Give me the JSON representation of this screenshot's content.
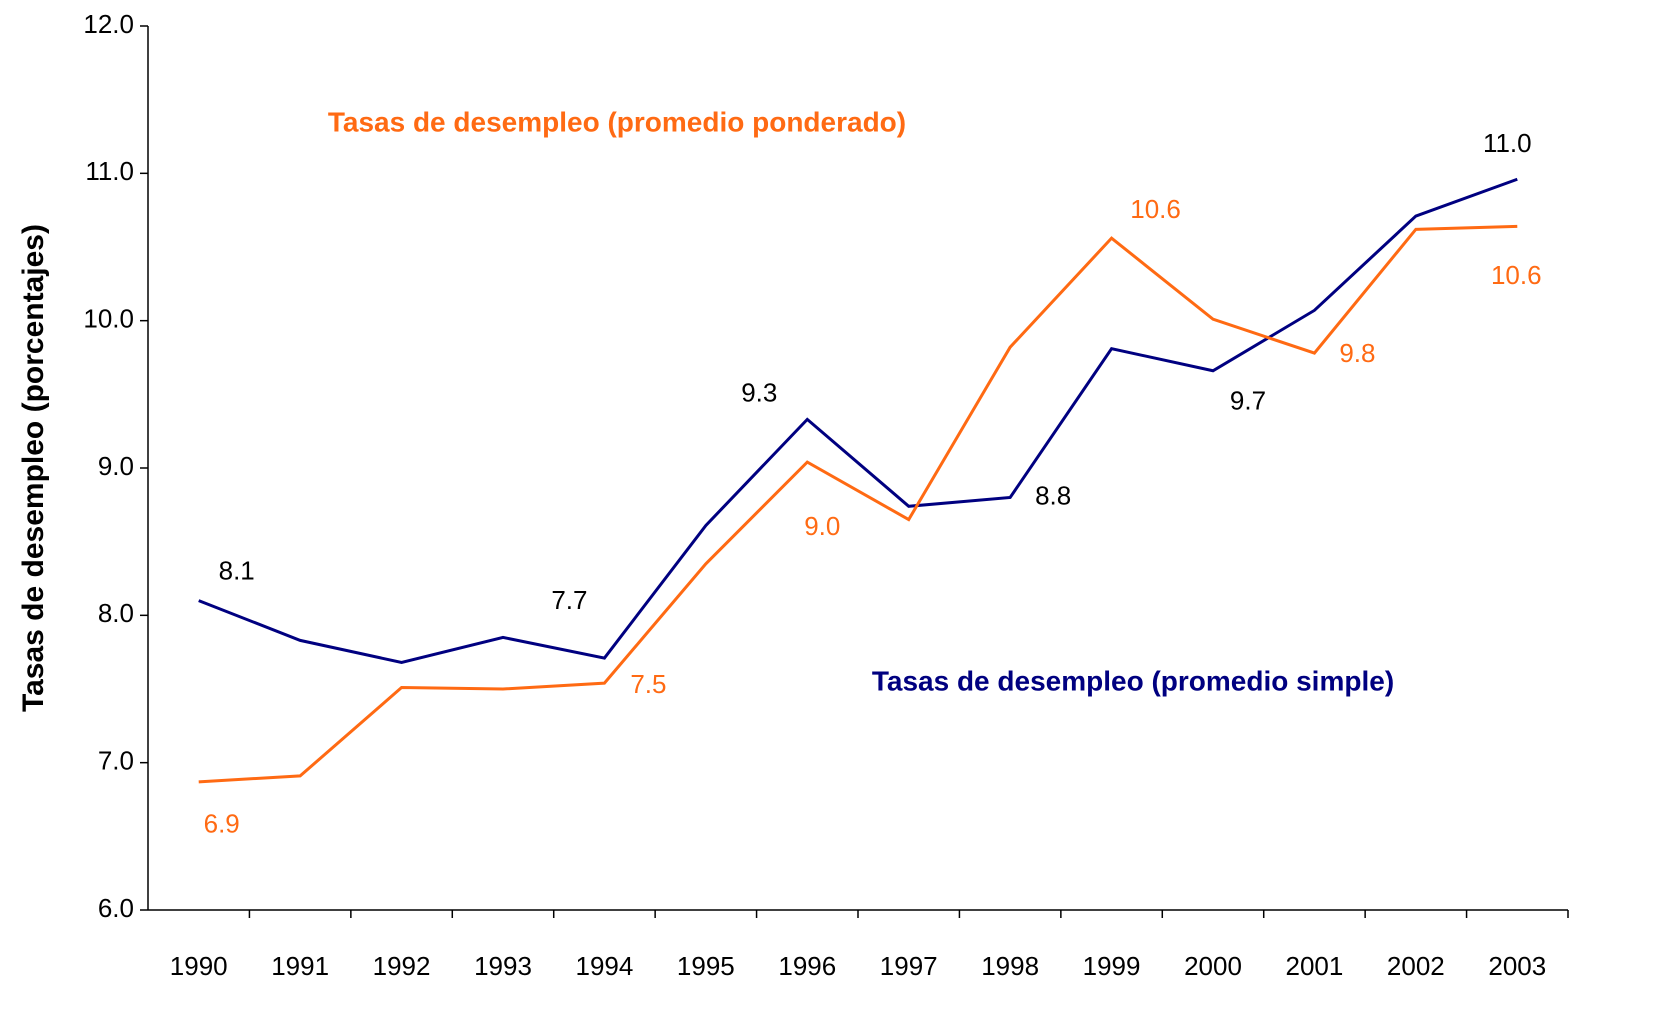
{
  "chart_data": {
    "type": "line",
    "y_label": "Tasas de desempleo (porcentajes)",
    "categories": [
      "1990",
      "1991",
      "1992",
      "1993",
      "1994",
      "1995",
      "1996",
      "1997",
      "1998",
      "1999",
      "2000",
      "2001",
      "2002",
      "2003"
    ],
    "series": [
      {
        "name": "Tasas de desempleo (promedio simple)",
        "color": "#000080",
        "values": [
          8.1,
          7.83,
          7.68,
          7.85,
          7.71,
          8.61,
          9.33,
          8.74,
          8.8,
          9.81,
          9.66,
          10.07,
          10.71,
          10.96
        ],
        "value_labels": [
          "8.1",
          null,
          null,
          null,
          "7.7",
          null,
          "9.3",
          null,
          "8.8",
          null,
          "9.7",
          null,
          null,
          "11.0"
        ]
      },
      {
        "name": "Tasas de desempleo (promedio ponderado)",
        "color": "#ff6a13",
        "values": [
          6.87,
          6.91,
          7.51,
          7.5,
          7.54,
          8.35,
          9.04,
          8.65,
          9.82,
          10.56,
          10.01,
          9.78,
          10.62,
          10.64
        ],
        "value_labels": [
          "6.9",
          null,
          null,
          null,
          "7.5",
          null,
          "9.0",
          null,
          null,
          "10.6",
          null,
          "9.8",
          null,
          "10.6"
        ]
      }
    ],
    "ylim": [
      6,
      12
    ],
    "yticks": [
      {
        "value": 6,
        "label": "6.0"
      },
      {
        "value": 7,
        "label": "7.0"
      },
      {
        "value": 8,
        "label": "8.0"
      },
      {
        "value": 9,
        "label": "9.0"
      },
      {
        "value": 10,
        "label": "10.0"
      },
      {
        "value": 11,
        "label": "11.0"
      },
      {
        "value": 12,
        "label": "12.0"
      }
    ],
    "grid": false
  }
}
